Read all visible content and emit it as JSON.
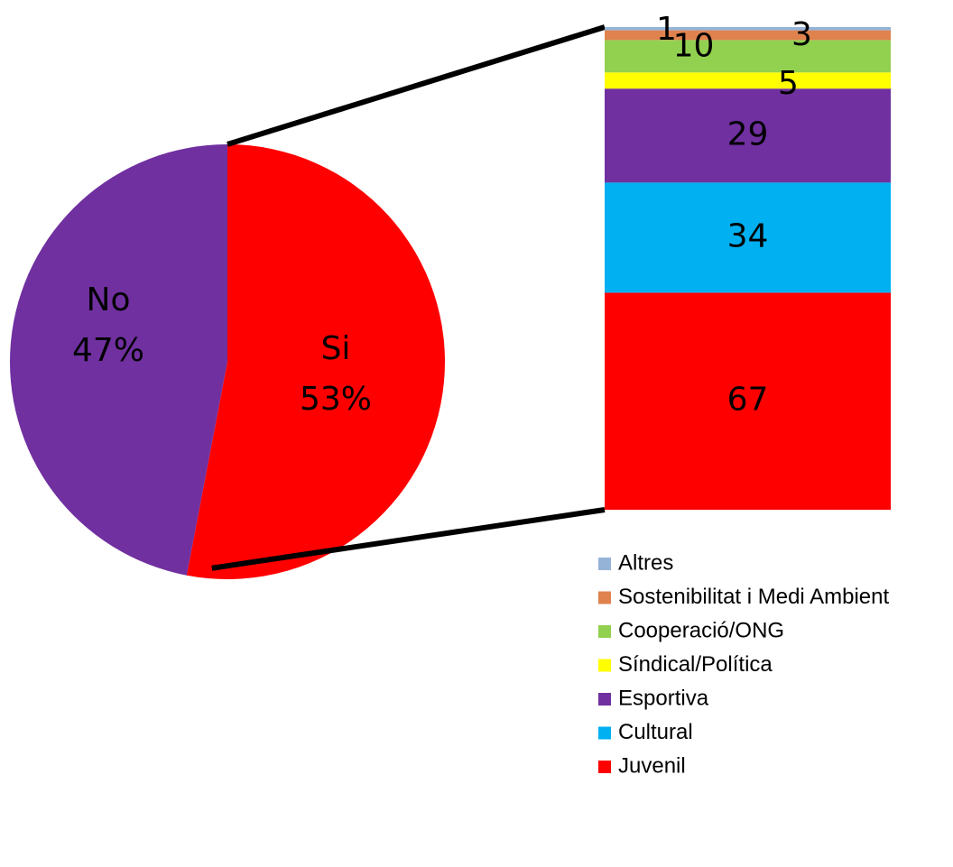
{
  "chart_data": [
    {
      "type": "pie",
      "slices": [
        {
          "label": "Si",
          "value": 53,
          "percent_label": "53%",
          "color": "#ff0000"
        },
        {
          "label": "No",
          "value": 47,
          "percent_label": "47%",
          "color": "#7030a0"
        }
      ]
    },
    {
      "type": "bar",
      "stacked": true,
      "series": [
        {
          "name": "Juvenil",
          "value": 67,
          "label": "67",
          "color": "#ff0000"
        },
        {
          "name": "Cultural",
          "value": 34,
          "label": "34",
          "color": "#00b0f0"
        },
        {
          "name": "Esportiva",
          "value": 29,
          "label": "29",
          "color": "#7030a0"
        },
        {
          "name": "Síndical/Política",
          "value": 5,
          "label": "5",
          "color": "#ffff00"
        },
        {
          "name": "Cooperació/ONG",
          "value": 10,
          "label": "10",
          "color": "#92d050"
        },
        {
          "name": "Sostenibilitat i Medi Ambient",
          "value": 3,
          "label": "3",
          "color": "#e0824e"
        },
        {
          "name": "Altres",
          "value": 1,
          "label": "1",
          "color": "#95b3d7"
        }
      ],
      "legend": {
        "position": "bottom-right",
        "order": [
          "Altres",
          "Sostenibilitat i Medi Ambient",
          "Cooperació/ONG",
          "Síndical/Política",
          "Esportiva",
          "Cultural",
          "Juvenil"
        ]
      }
    }
  ],
  "connector_color": "#000000"
}
